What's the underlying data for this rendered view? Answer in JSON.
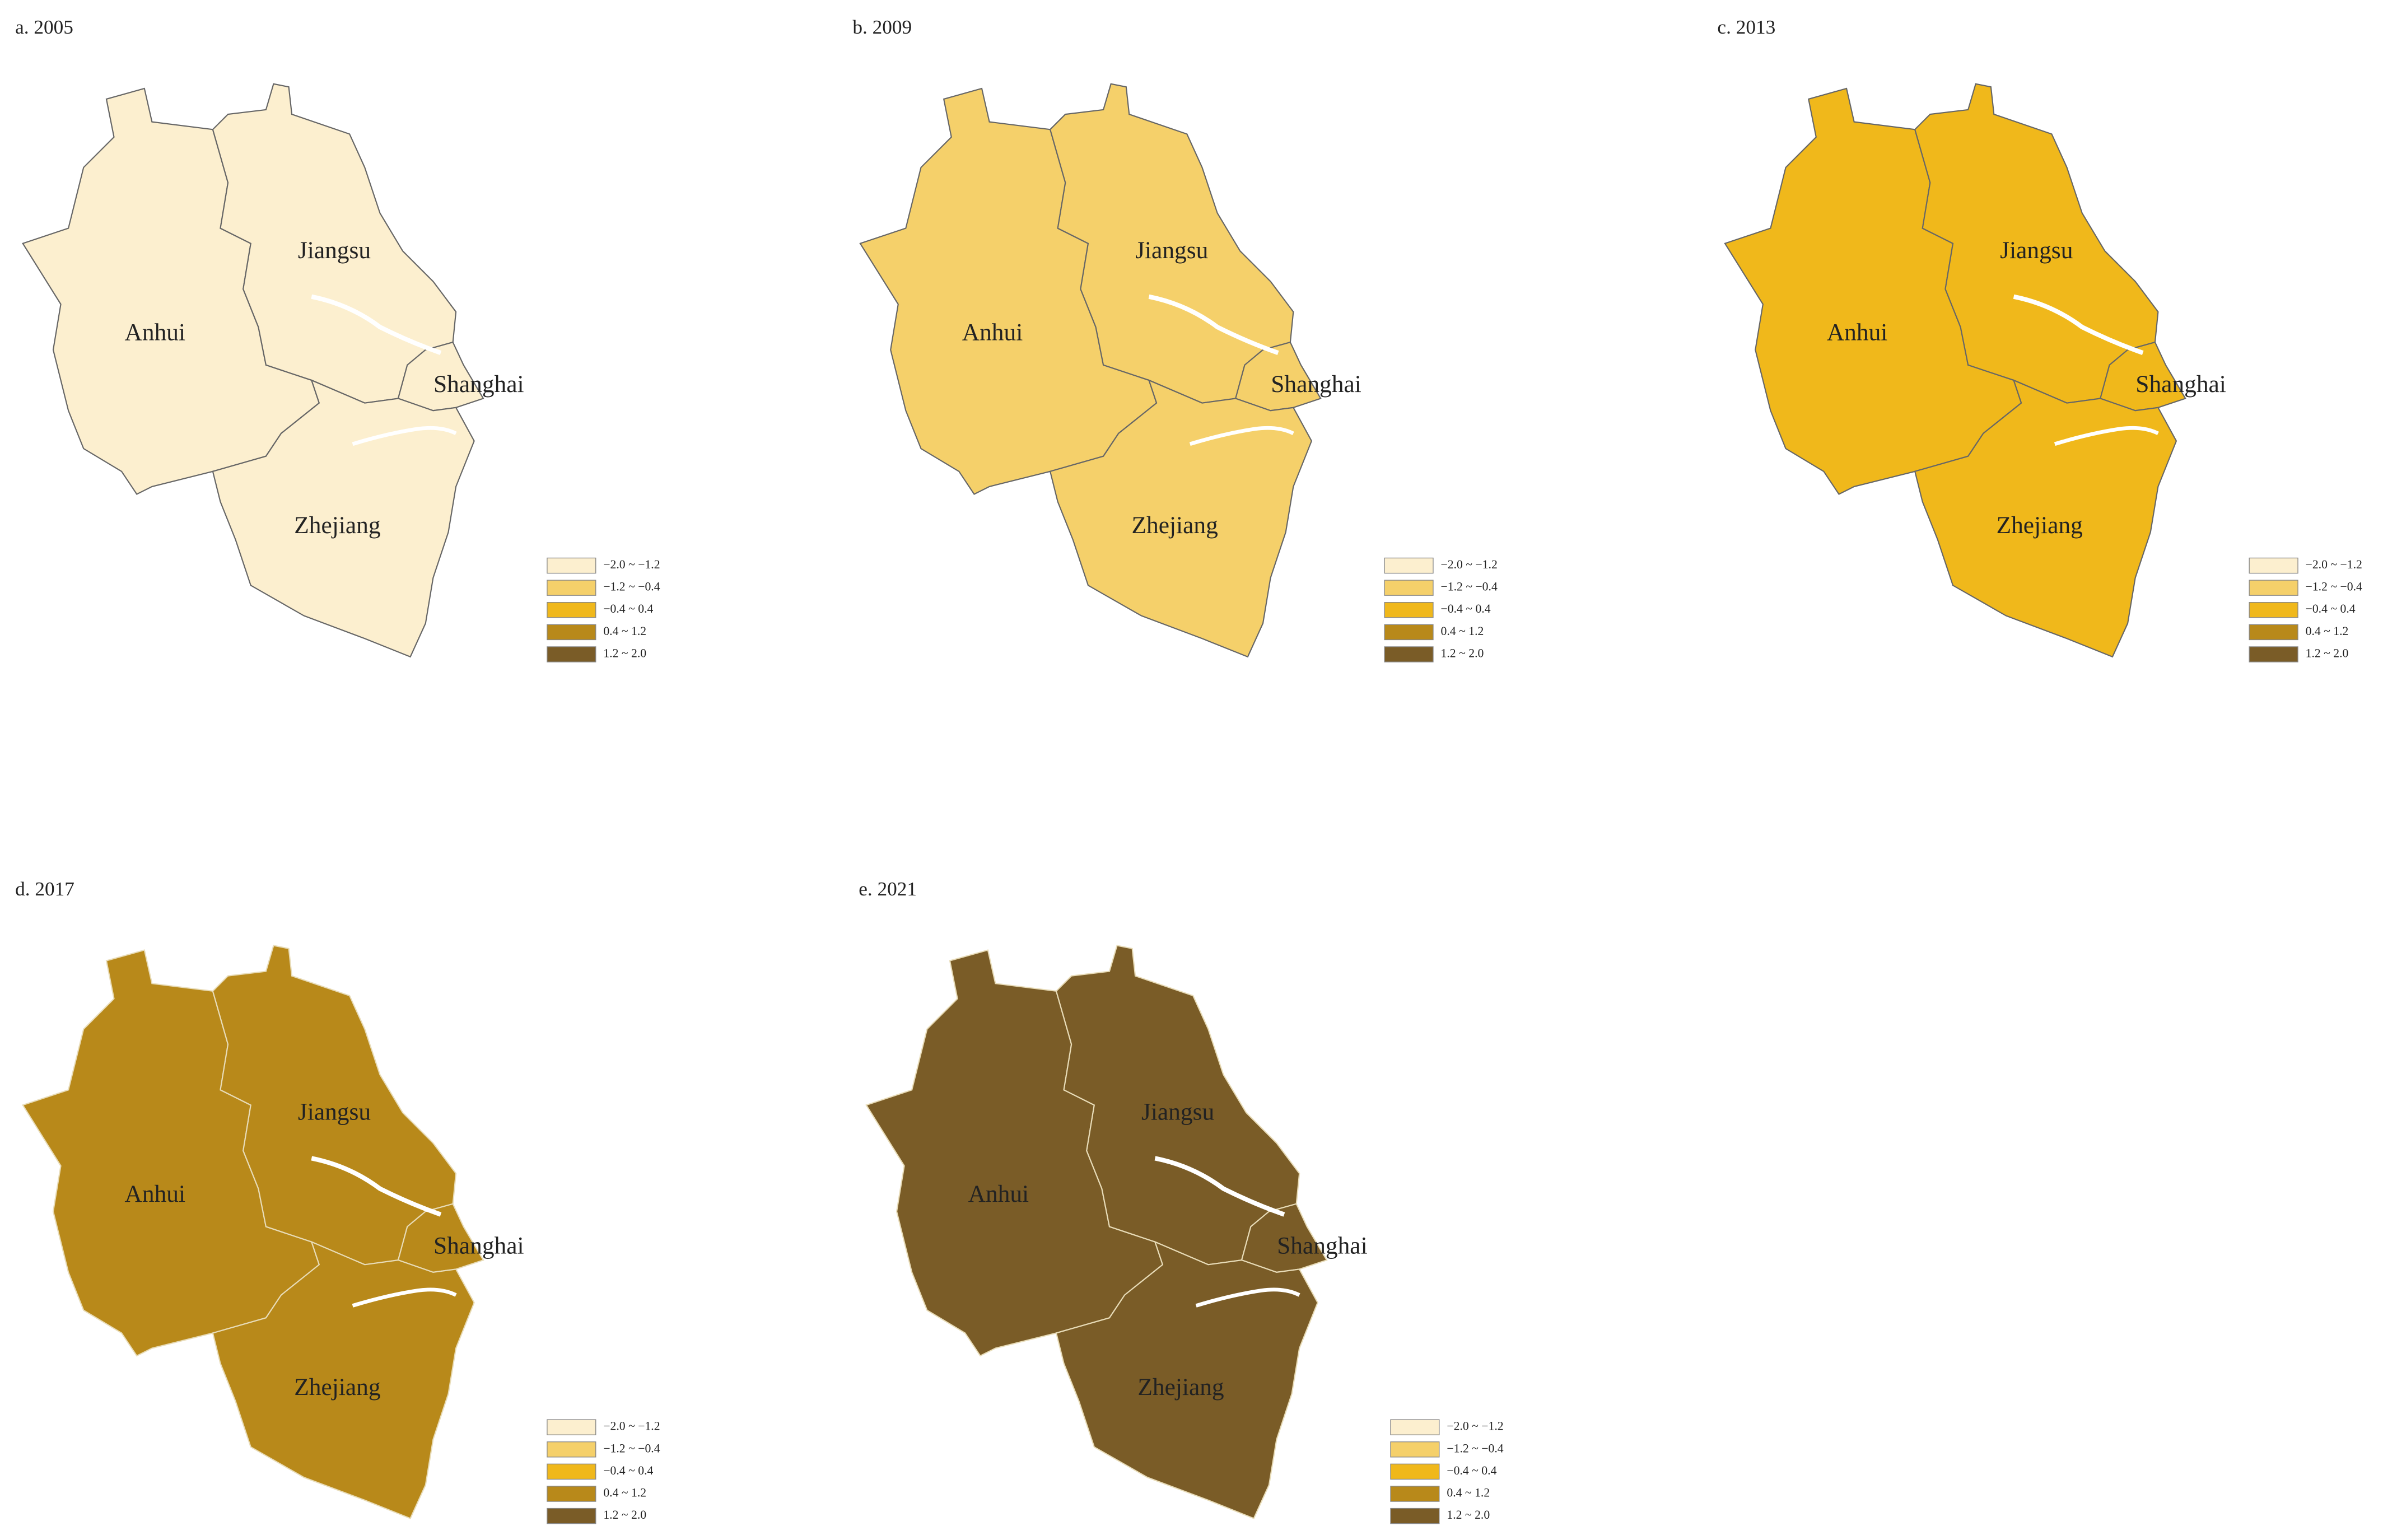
{
  "regions": [
    "Anhui",
    "Jiangsu",
    "Shanghai",
    "Zhejiang"
  ],
  "legend": [
    {
      "label": "−2.0 ~ −1.2",
      "color": "#fcefcf"
    },
    {
      "label": "−1.2 ~ −0.4",
      "color": "#f5d06a"
    },
    {
      "label": "−0.4 ~ 0.4",
      "color": "#f0b81b"
    },
    {
      "label": "0.4 ~ 1.2",
      "color": "#b8891a"
    },
    {
      "label": "1.2 ~ 2.0",
      "color": "#7a5c27"
    }
  ],
  "panels": [
    {
      "title": "a. 2005",
      "color": "#fcefcf",
      "border_color": "#666666"
    },
    {
      "title": "b. 2009",
      "color": "#f5d06a",
      "border_color": "#666666"
    },
    {
      "title": "c. 2013",
      "color": "#f0b81b",
      "border_color": "#666666"
    },
    {
      "title": "d. 2017",
      "color": "#b8891a",
      "border_color": "#e8dcb8"
    },
    {
      "title": "e. 2021",
      "color": "#7a5c27",
      "border_color": "#e8dcb8"
    }
  ]
}
